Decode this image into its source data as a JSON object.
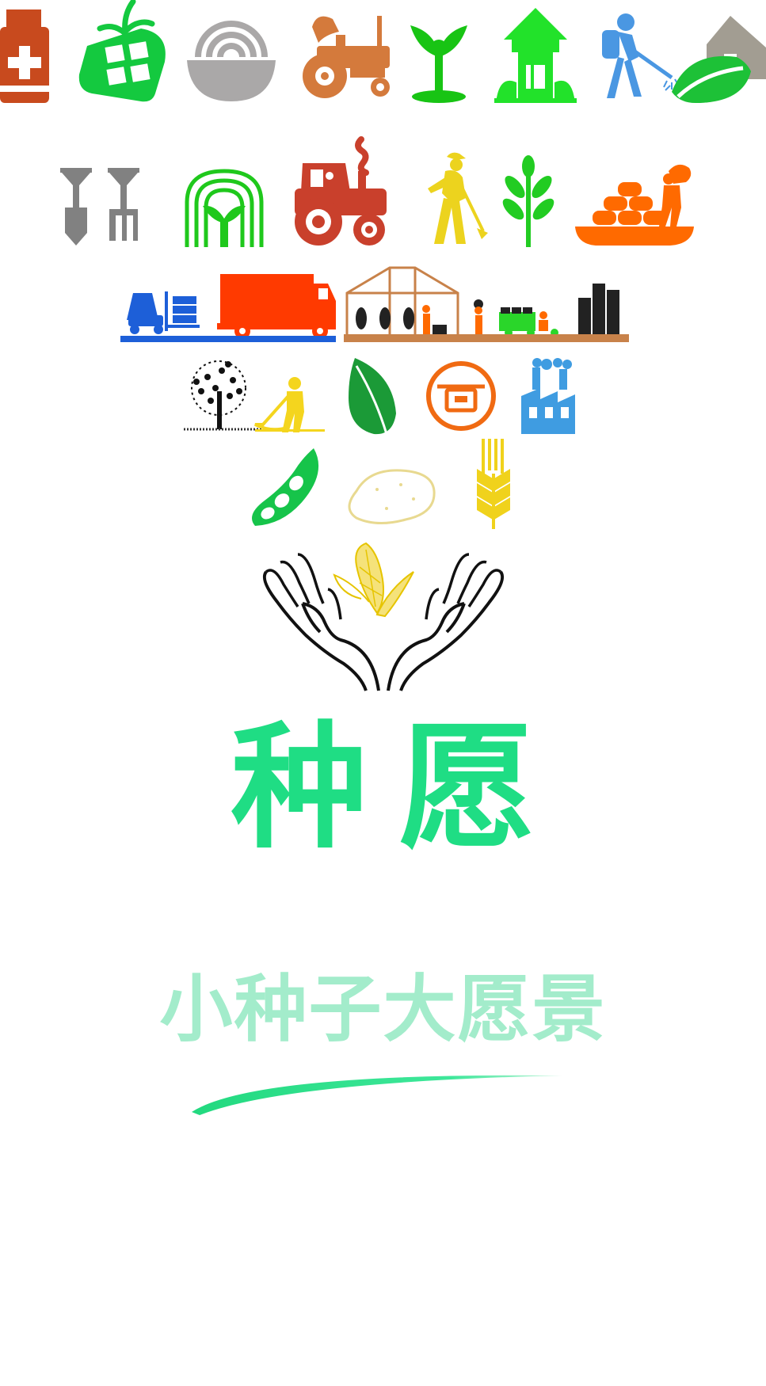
{
  "brand": {
    "title": "种愿",
    "slogan": "小种子大愿景"
  },
  "icons": {
    "row1": [
      "medicine-bottle-icon",
      "seed-package-icon",
      "noodle-bowl-icon",
      "tractor-icon",
      "sprout-icon",
      "greenhouse-house-icon",
      "sprayer-worker-icon",
      "leaf-house-icon"
    ],
    "row2": [
      "shovel-rake-icon",
      "plant-arch-icon",
      "red-tractor-icon",
      "farmer-hoeing-icon",
      "wheat-leaf-icon",
      "worker-sacks-icon"
    ],
    "row3": [
      "forklift-truck-icon",
      "greenhouse-harvest-icon"
    ],
    "row4": [
      "tree-farmer-icon",
      "green-leaf-icon",
      "lunchbox-icon",
      "factory-icon"
    ],
    "row5": [
      "soybean-icon",
      "potato-icon",
      "wheat-ear-icon"
    ],
    "row6": [
      "hands-corn-icon"
    ]
  },
  "colors": {
    "title": "#1fdd84",
    "slogan": "#a3eccb",
    "swoosh": "#2ee38f",
    "green": "#16c43a",
    "orange": "#ff6a00",
    "brown": "#d47a3c",
    "gray": "#8a8a8a",
    "red": "#c9402c",
    "blue": "#3a8ee6",
    "yellow": "#f0d21c"
  }
}
